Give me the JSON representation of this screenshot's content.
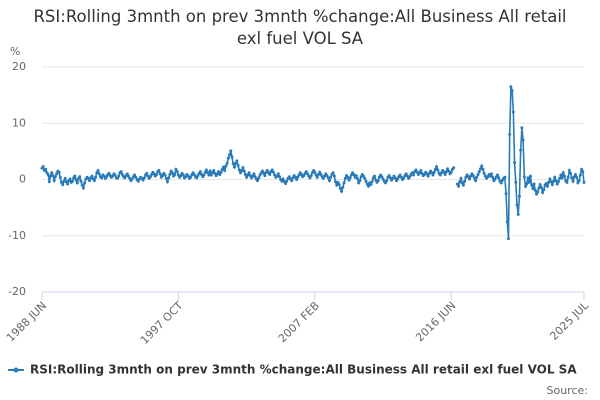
{
  "chart_data": {
    "type": "line",
    "title": "RSI:Rolling 3mnth on prev 3mnth %change:All Business All retail exl fuel VOL SA",
    "y_label": "%",
    "source": "Source:",
    "ylim": [
      -20,
      20
    ],
    "yticks": [
      -20,
      -10,
      0,
      10,
      20
    ],
    "grid": true,
    "categories": [
      "1988 JUN",
      null,
      null,
      null,
      null,
      null,
      null,
      null,
      null,
      null,
      null,
      null,
      null,
      null,
      null,
      null,
      null,
      null,
      null,
      null,
      null,
      null,
      null,
      null,
      null,
      null,
      null,
      null,
      null,
      null,
      null,
      null,
      null,
      null,
      null,
      null,
      null,
      null,
      null,
      null,
      null,
      null,
      null,
      null,
      null,
      null,
      null,
      null,
      null,
      null,
      null,
      null,
      null,
      null,
      null,
      null,
      null,
      null,
      null,
      null,
      null,
      null,
      null,
      null,
      null,
      null,
      null,
      null,
      null,
      null,
      null,
      null,
      null,
      null,
      null,
      null,
      null,
      null,
      null,
      null,
      null,
      null,
      null,
      null,
      null,
      null,
      null,
      null,
      null,
      null,
      null,
      null,
      null,
      null,
      null,
      null,
      null,
      null,
      null,
      null,
      null,
      null,
      null,
      null,
      null,
      null,
      null,
      null,
      null,
      null,
      null,
      null,
      "1997 OCT",
      null,
      null,
      null,
      null,
      null,
      null,
      null,
      null,
      null,
      null,
      null,
      null,
      null,
      null,
      null,
      null,
      null,
      null,
      null,
      null,
      null,
      null,
      null,
      null,
      null,
      null,
      null,
      null,
      null,
      null,
      null,
      null,
      null,
      null,
      null,
      null,
      null,
      null,
      null,
      null,
      null,
      null,
      null,
      null,
      null,
      null,
      null,
      null,
      null,
      null,
      null,
      null,
      null,
      null,
      null,
      null,
      null,
      null,
      null,
      null,
      null,
      null,
      null,
      null,
      null,
      null,
      null,
      null,
      null,
      null,
      null,
      null,
      null,
      null,
      null,
      null,
      null,
      null,
      null,
      null,
      null,
      null,
      null,
      null,
      null,
      null,
      null,
      null,
      null,
      null,
      null,
      null,
      null,
      null,
      null,
      null,
      null,
      null,
      null,
      null,
      null,
      null,
      null,
      null,
      null,
      null,
      null,
      null,
      null,
      null,
      null,
      "2007 FEB",
      null,
      null,
      null,
      null,
      null,
      null,
      null,
      null,
      null,
      null,
      null,
      null,
      null,
      null,
      null,
      null,
      null,
      null,
      null,
      null,
      null,
      null,
      null,
      null,
      null,
      null,
      null,
      null,
      null,
      null,
      null,
      null,
      null,
      null,
      null,
      null,
      null,
      null,
      null,
      null,
      null,
      null,
      null,
      null,
      null,
      null,
      null,
      null,
      null,
      null,
      null,
      null,
      null,
      null,
      null,
      null,
      null,
      null,
      null,
      null,
      null,
      null,
      null,
      null,
      null,
      null,
      null,
      null,
      null,
      null,
      null,
      null,
      null,
      null,
      null,
      null,
      null,
      null,
      null,
      null,
      null,
      null,
      null,
      null,
      null,
      null,
      null,
      null,
      null,
      null,
      null,
      null,
      null,
      null,
      null,
      null,
      null,
      null,
      null,
      null,
      null,
      null,
      null,
      null,
      null,
      null,
      null,
      null,
      null,
      null,
      null,
      "2016 JUN",
      null,
      null,
      null,
      null,
      null,
      null,
      null,
      null,
      null,
      null,
      null,
      null,
      null,
      null,
      null,
      null,
      null,
      null,
      null,
      null,
      null,
      null,
      null,
      null,
      null,
      null,
      null,
      null,
      null,
      null,
      null,
      null,
      null,
      null,
      null,
      null,
      null,
      null,
      null,
      null,
      null,
      null,
      null,
      null,
      null,
      null,
      null,
      null,
      null,
      null,
      null,
      null,
      null,
      null,
      null,
      null,
      null,
      null,
      null,
      null,
      null,
      null,
      null,
      null,
      null,
      null,
      null,
      null,
      null,
      null,
      null,
      null,
      null,
      null,
      null,
      null,
      null,
      null,
      null,
      null,
      null,
      null,
      null,
      null,
      null,
      null,
      null,
      null,
      null,
      null,
      null,
      null,
      null,
      null,
      null,
      null,
      null,
      null,
      null,
      null,
      null,
      null,
      null,
      null,
      null,
      null,
      null,
      null,
      "2025 JUL"
    ],
    "series": [
      {
        "name": "RSI:Rolling 3mnth on prev 3mnth %change:All Business All retail exl fuel VOL SA",
        "color": "#2b7bb9",
        "values": [
          2.0,
          2.3,
          1.6,
          1.8,
          1.2,
          0.9,
          -0.4,
          0.6,
          1.2,
          0.7,
          -0.2,
          0.5,
          1.0,
          1.5,
          1.3,
          0.4,
          -0.5,
          -0.9,
          -0.3,
          0.2,
          -0.4,
          -0.8,
          -0.2,
          0.1,
          -0.5,
          -0.3,
          0.3,
          0.6,
          -0.1,
          -0.6,
          0.2,
          0.5,
          -0.3,
          -1.0,
          -1.5,
          -0.6,
          0.1,
          0.4,
          0.2,
          -0.2,
          0.3,
          0.6,
          0.1,
          -0.2,
          0.4,
          1.2,
          1.6,
          1.0,
          0.5,
          0.3,
          0.8,
          0.6,
          0.2,
          0.5,
          0.9,
          1.1,
          0.7,
          0.4,
          0.6,
          1.0,
          0.8,
          0.3,
          0.2,
          0.6,
          1.2,
          1.4,
          0.9,
          0.5,
          0.3,
          0.7,
          1.0,
          0.6,
          0.2,
          -0.2,
          0.1,
          0.5,
          0.8,
          0.4,
          0.0,
          -0.3,
          0.1,
          0.4,
          0.2,
          -0.1,
          0.3,
          0.8,
          1.1,
          0.6,
          0.2,
          0.5,
          0.9,
          1.3,
          1.0,
          0.6,
          0.9,
          1.4,
          1.6,
          1.0,
          0.4,
          0.7,
          1.1,
          0.8,
          0.2,
          -0.4,
          0.3,
          0.9,
          1.5,
          1.2,
          0.6,
          0.9,
          1.8,
          1.4,
          0.8,
          0.4,
          0.7,
          1.1,
          0.8,
          0.3,
          0.5,
          0.9,
          0.6,
          0.2,
          0.4,
          0.8,
          1.2,
          0.9,
          0.5,
          0.3,
          0.7,
          1.1,
          1.4,
          0.9,
          0.5,
          0.8,
          1.3,
          1.7,
          1.2,
          0.8,
          1.5,
          0.8,
          1.2,
          1.6,
          1.1,
          0.7,
          1.0,
          1.4,
          0.9,
          1.3,
          1.8,
          2.2,
          1.6,
          2.4,
          2.9,
          3.8,
          4.4,
          5.1,
          4.0,
          2.8,
          2.2,
          2.9,
          3.3,
          2.5,
          1.7,
          1.2,
          1.6,
          2.1,
          1.5,
          0.9,
          0.4,
          0.8,
          1.2,
          0.7,
          0.3,
          0.6,
          1.0,
          0.5,
          0.1,
          -0.2,
          0.3,
          0.8,
          1.2,
          1.5,
          1.1,
          0.7,
          1.3,
          1.6,
          1.2,
          0.9,
          1.4,
          1.7,
          1.3,
          0.8,
          0.4,
          0.6,
          1.0,
          0.5,
          0.0,
          -0.3,
          0.1,
          -0.4,
          -0.7,
          -0.3,
          0.2,
          0.5,
          0.1,
          -0.2,
          0.3,
          0.7,
          0.4,
          0.0,
          0.4,
          0.8,
          1.2,
          0.9,
          0.5,
          0.7,
          1.1,
          1.4,
          1.0,
          0.6,
          0.3,
          0.7,
          1.2,
          1.6,
          1.3,
          0.8,
          0.4,
          0.9,
          1.3,
          0.9,
          0.5,
          0.2,
          0.6,
          1.0,
          0.7,
          0.3,
          -0.2,
          0.4,
          0.9,
          1.2,
          0.6,
          -0.4,
          -1.0,
          -0.5,
          -0.9,
          -1.6,
          -2.1,
          -1.4,
          -0.6,
          0.2,
          0.7,
          0.4,
          -0.1,
          0.3,
          0.8,
          1.2,
          0.9,
          0.4,
          0.7,
          0.2,
          -0.6,
          -0.2,
          0.5,
          0.9,
          0.6,
          0.2,
          -0.3,
          -0.8,
          -1.2,
          -0.6,
          -0.9,
          -0.4,
          0.3,
          0.6,
          -0.1,
          -0.5,
          -0.2,
          0.4,
          0.8,
          0.5,
          0.1,
          -0.3,
          -0.6,
          -0.2,
          0.4,
          0.7,
          0.3,
          -0.1,
          0.2,
          0.6,
          0.3,
          -0.2,
          0.1,
          0.5,
          0.8,
          0.4,
          0.0,
          0.3,
          0.7,
          1.0,
          0.6,
          0.2,
          0.5,
          0.9,
          1.2,
          0.8,
          1.4,
          1.7,
          1.3,
          0.9,
          1.2,
          1.6,
          1.1,
          0.7,
          0.9,
          1.3,
          1.0,
          0.6,
          1.1,
          1.5,
          1.2,
          0.8,
          1.3,
          1.8,
          2.3,
          1.7,
          1.1,
          0.8,
          1.2,
          1.6,
          1.3,
          0.9,
          1.4,
          1.9,
          1.5,
          1.0,
          1.3,
          1.8,
          2.1,
          null,
          null,
          -0.8,
          -1.2,
          -0.4,
          0.2,
          -0.6,
          -1.0,
          -0.3,
          0.4,
          0.8,
          0.5,
          0.1,
          0.6,
          1.0,
          0.7,
          0.3,
          -0.2,
          0.4,
          0.9,
          1.4,
          1.9,
          2.4,
          1.8,
          1.1,
          0.6,
          0.2,
          0.5,
          0.9,
          0.6,
          1.0,
          0.4,
          -0.2,
          0.1,
          0.5,
          0.8,
          0.3,
          -0.3,
          -0.6,
          -0.1,
          0.2,
          0.4,
          -2.5,
          -7.5,
          -10.5,
          8.0,
          16.5,
          15.8,
          12.0,
          3.0,
          -0.5,
          -4.5,
          -6.2,
          -3.0,
          5.2,
          9.2,
          7.0,
          0.5,
          -1.2,
          -0.8,
          0.3,
          -0.5,
          0.6,
          -1.0,
          -1.6,
          -0.8,
          -1.9,
          -2.6,
          -2.2,
          -1.5,
          -0.9,
          -1.4,
          -2.3,
          -1.8,
          -1.0,
          -0.7,
          -1.2,
          -0.5,
          0.1,
          -0.4,
          -0.9,
          -0.3,
          0.4,
          -0.2,
          -0.8,
          -0.4,
          0.2,
          0.8,
          0.3,
          1.2,
          0.6,
          -0.2,
          -0.5,
          0.4,
          1.6,
          1.1,
          0.3,
          -0.3,
          0.5,
          0.9,
          0.4,
          -0.6,
          -0.2,
          0.8,
          1.8,
          1.4,
          -0.5
        ]
      }
    ]
  }
}
